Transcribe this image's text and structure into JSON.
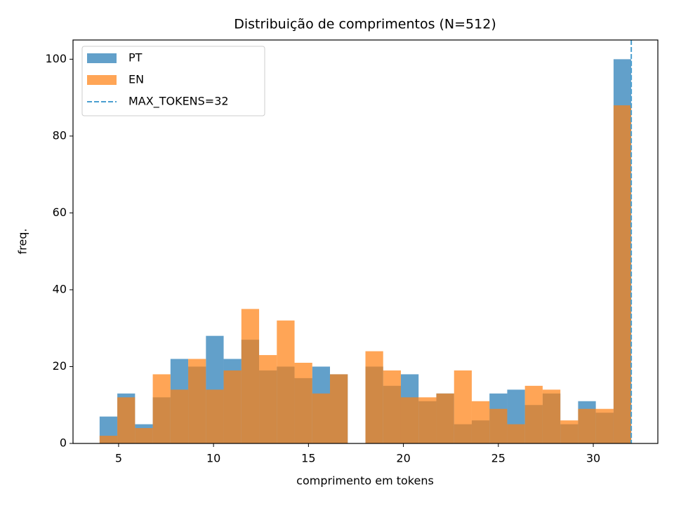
{
  "chart_data": {
    "type": "histogram",
    "title": "Distribuição de comprimentos (N=512)",
    "xlabel": "comprimento em tokens",
    "ylabel": "freq.",
    "bins": [
      4,
      4.933,
      5.867,
      6.8,
      7.733,
      8.667,
      9.6,
      10.533,
      11.467,
      12.4,
      13.333,
      14.267,
      15.2,
      16.133,
      17.067,
      18,
      18.933,
      19.867,
      20.8,
      21.733,
      22.667,
      23.6,
      24.533,
      25.467,
      26.4,
      27.333,
      28.267,
      29.2,
      30.133,
      31.067,
      32
    ],
    "series": [
      {
        "name": "PT",
        "color": "#1f77b4",
        "opacity": 0.7,
        "values": [
          7,
          13,
          5,
          12,
          22,
          20,
          28,
          22,
          27,
          19,
          20,
          17,
          20,
          18,
          0,
          20,
          15,
          18,
          11,
          13,
          5,
          6,
          13,
          14,
          10,
          13,
          5,
          11,
          8,
          100
        ]
      },
      {
        "name": "EN",
        "color": "#ff7f0e",
        "opacity": 0.7,
        "values": [
          2,
          12,
          4,
          18,
          14,
          22,
          14,
          19,
          35,
          23,
          32,
          21,
          13,
          18,
          0,
          24,
          19,
          12,
          12,
          13,
          19,
          11,
          9,
          5,
          15,
          14,
          6,
          9,
          9,
          88
        ]
      }
    ],
    "vline": {
      "x": 32,
      "label": "MAX_TOKENS=32",
      "color": "#4a9fd0"
    },
    "xlim": [
      2.6,
      33.4
    ],
    "xticks": [
      5,
      10,
      15,
      20,
      25,
      30
    ],
    "ylim": [
      0,
      105
    ],
    "yticks": [
      0,
      20,
      40,
      60,
      80,
      100
    ],
    "legend": "upper left"
  }
}
